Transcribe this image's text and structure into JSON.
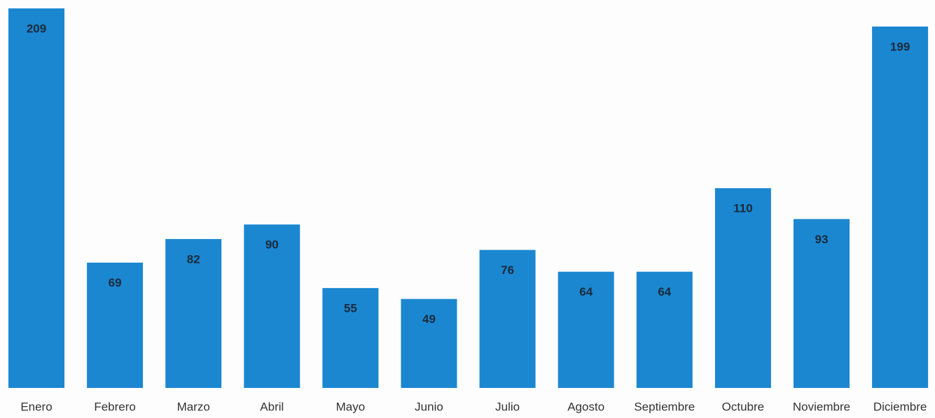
{
  "chart_data": {
    "type": "bar",
    "categories": [
      "Enero",
      "Febrero",
      "Marzo",
      "Abril",
      "Mayo",
      "Junio",
      "Julio",
      "Agosto",
      "Septiembre",
      "Octubre",
      "Noviembre",
      "Diciembre"
    ],
    "values": [
      209,
      69,
      82,
      90,
      55,
      49,
      76,
      64,
      64,
      110,
      93,
      199
    ],
    "color": "#1b87d1"
  }
}
